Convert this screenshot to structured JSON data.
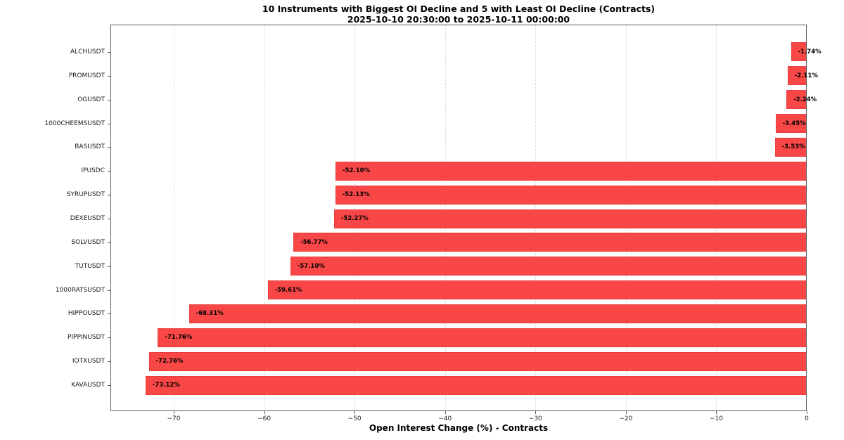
{
  "chart_data": {
    "type": "bar",
    "orientation": "horizontal",
    "title": "10 Instruments with Biggest OI Decline and 5 with Least OI Decline (Contracts)",
    "subtitle": "2025-10-10 20:30:00 to 2025-10-11 00:00:00",
    "xlabel": "Open Interest Change (%) - Contracts",
    "categories": [
      "ALCHUSDT",
      "PROMUSDT",
      "OGUSDT",
      "1000CHEEMSUSDT",
      "BASUSDT",
      "IPUSDC",
      "SYRUPUSDT",
      "DEXEUSDT",
      "SOLVUSDT",
      "TUTUSDT",
      "1000RATSUSDT",
      "HIPPOUSDT",
      "PIPPINUSDT",
      "IOTXUSDT",
      "KAVAUSDT"
    ],
    "values": [
      -1.74,
      -2.11,
      -2.24,
      -3.45,
      -3.53,
      -52.1,
      -52.13,
      -52.27,
      -56.77,
      -57.1,
      -59.61,
      -68.31,
      -71.76,
      -72.76,
      -73.12
    ],
    "bar_labels": [
      "-1.74%",
      "-2.11%",
      "-2.24%",
      "-3.45%",
      "-3.53%",
      "-52.10%",
      "-52.13%",
      "-52.27%",
      "-56.77%",
      "-57.10%",
      "-59.61%",
      "-68.31%",
      "-71.76%",
      "-72.76%",
      "-73.12%"
    ],
    "xlim": [
      -77,
      0
    ],
    "xticks": [
      -70,
      -60,
      -50,
      -40,
      -30,
      -20,
      -10,
      0
    ],
    "xtick_labels": [
      "−70",
      "−60",
      "−50",
      "−40",
      "−30",
      "−20",
      "−10",
      "0"
    ],
    "grid": "vertical-dotted",
    "legend": false,
    "bar_color": "#f94646",
    "bar_edge_color": "#ea3d3d",
    "value_label_color": "#000000"
  }
}
